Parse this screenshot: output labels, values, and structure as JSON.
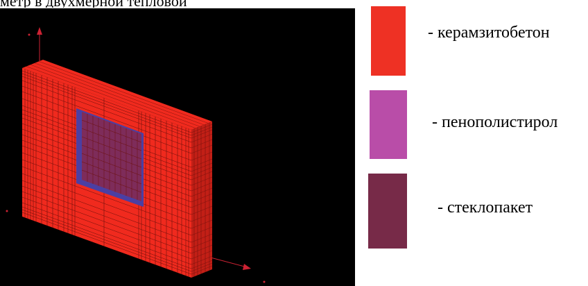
{
  "top_text": "метр  в  двухмерной  тепловой",
  "legend": [
    {
      "label": "- керамзитобетон",
      "color": "#ee3124"
    },
    {
      "label": "- пенополистирол",
      "color": "#b94da8"
    },
    {
      "label": "- стеклопакет",
      "color": "#772a48"
    }
  ],
  "render": {
    "background": "#000000",
    "wall_color": "#f02a1e",
    "wall_shade_color": "#c21f16",
    "mesh_line_color": "#6a0f0a",
    "window_frame_color": "#4b3fa3",
    "window_glass_color": "#7e2c5a",
    "axis_color": "#cc2233"
  }
}
